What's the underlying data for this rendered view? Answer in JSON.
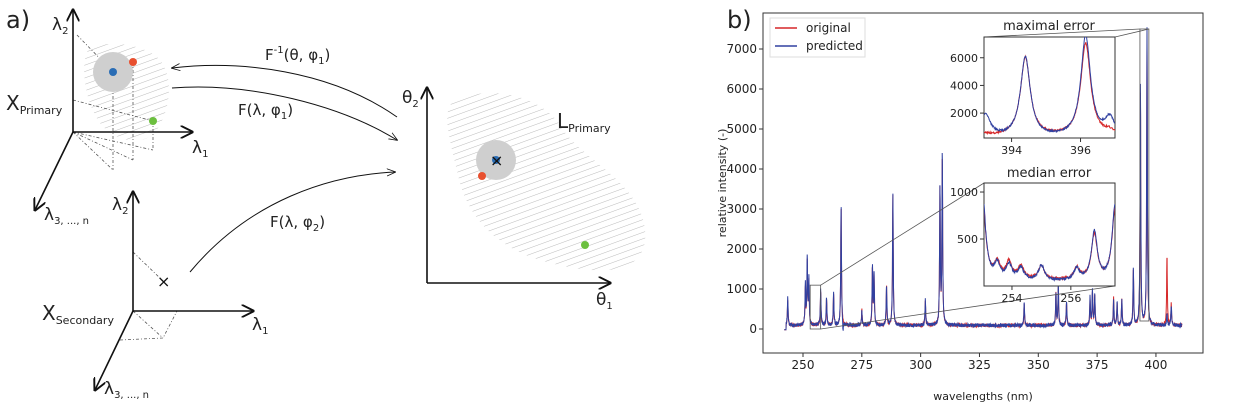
{
  "panel_a": {
    "label": "a)",
    "primary_space": {
      "name": "X",
      "name_sub": "Primary",
      "axis_y": {
        "main": "λ",
        "sub": "2"
      },
      "axis_x": {
        "main": "λ",
        "sub": "1"
      },
      "axis_z": {
        "main": "λ",
        "sub": "3, ..., n"
      }
    },
    "secondary_space": {
      "name": "X",
      "name_sub": "Secondary",
      "axis_y": {
        "main": "λ",
        "sub": "2"
      },
      "axis_x": {
        "main": "λ",
        "sub": "1"
      },
      "axis_z": {
        "main": "λ",
        "sub": "3, ..., n"
      },
      "marker": "×"
    },
    "latent_space": {
      "name": "L",
      "name_sub": "Primary",
      "axis_y": {
        "main": "θ",
        "sub": "2"
      },
      "axis_x": {
        "main": "θ",
        "sub": "1"
      },
      "marker": "×"
    },
    "arrows": {
      "inverse": {
        "f": "F",
        "sup": "-1",
        "args": "(θ, φ",
        "sub": "1",
        "close": ")"
      },
      "forward_primary": {
        "f": "F",
        "args": "(λ, φ",
        "sub": "1",
        "close": ")"
      },
      "forward_secondary": {
        "f": "F",
        "args": "(λ, φ",
        "sub": "2",
        "close": ")"
      }
    },
    "colors": {
      "blue_point": "#2a6db5",
      "red_point": "#e8502f",
      "green_point": "#6cbf3f",
      "region": "#cccccc"
    }
  },
  "panel_b": {
    "label": "b)"
  },
  "chart_data": {
    "type": "line",
    "xlabel": "wavelengths (nm)",
    "ylabel": "relative intensity (-)",
    "xlim": [
      233,
      420
    ],
    "ylim": [
      -600,
      7900
    ],
    "xticks": [
      250,
      275,
      300,
      325,
      350,
      375,
      400
    ],
    "yticks": [
      0,
      1000,
      2000,
      3000,
      4000,
      5000,
      6000,
      7000
    ],
    "grid": false,
    "legend": {
      "position": "top-left",
      "entries": [
        "original",
        "predicted"
      ]
    },
    "series": [
      {
        "name": "original",
        "color": "#d62728",
        "peaks": [
          [
            243.5,
            650
          ],
          [
            251,
            950
          ],
          [
            251.8,
            1550
          ],
          [
            252.5,
            1100
          ],
          [
            257.5,
            850
          ],
          [
            260,
            650
          ],
          [
            263,
            800
          ],
          [
            266.2,
            2950
          ],
          [
            275,
            380
          ],
          [
            279.5,
            1400
          ],
          [
            280.2,
            1250
          ],
          [
            285.5,
            950
          ],
          [
            288.2,
            3250
          ],
          [
            302,
            600
          ],
          [
            308.2,
            3350
          ],
          [
            309.2,
            4150
          ],
          [
            344,
            500
          ],
          [
            357.5,
            780
          ],
          [
            358.5,
            950
          ],
          [
            362,
            600
          ],
          [
            372,
            650
          ],
          [
            373,
            850
          ],
          [
            374,
            750
          ],
          [
            382,
            700
          ],
          [
            383.5,
            550
          ],
          [
            385.5,
            650
          ],
          [
            390.4,
            1400
          ],
          [
            393.4,
            5800
          ],
          [
            396.2,
            7000
          ],
          [
            404.7,
            1750
          ],
          [
            406.5,
            520
          ]
        ]
      },
      {
        "name": "predicted",
        "color": "#3040a0",
        "peaks": [
          [
            243.5,
            700
          ],
          [
            251,
            1000
          ],
          [
            251.8,
            1650
          ],
          [
            252.5,
            1150
          ],
          [
            257.5,
            900
          ],
          [
            260,
            700
          ],
          [
            263,
            850
          ],
          [
            266.2,
            3050
          ],
          [
            267,
            -300
          ],
          [
            275,
            350
          ],
          [
            279.5,
            1450
          ],
          [
            280.2,
            1300
          ],
          [
            285.5,
            1000
          ],
          [
            288.2,
            3300
          ],
          [
            302,
            650
          ],
          [
            308.2,
            3400
          ],
          [
            309.2,
            4250
          ],
          [
            344,
            550
          ],
          [
            357.5,
            800
          ],
          [
            358.5,
            1000
          ],
          [
            362,
            600
          ],
          [
            372,
            700
          ],
          [
            373,
            900
          ],
          [
            374,
            800
          ],
          [
            382,
            650
          ],
          [
            383.5,
            550
          ],
          [
            385.5,
            650
          ],
          [
            390.4,
            1450
          ],
          [
            393.4,
            6000
          ],
          [
            396.2,
            7500
          ],
          [
            404.7,
            300
          ],
          [
            406.5,
            500
          ]
        ]
      }
    ],
    "insets": [
      {
        "title": "maximal error",
        "xlim": [
          393.2,
          397.0
        ],
        "ylim": [
          200,
          7500
        ],
        "xticks": [
          394,
          396
        ],
        "yticks": [
          2000,
          4000,
          6000
        ],
        "series": [
          {
            "name": "original",
            "baseline": 300,
            "peaks": [
              [
                394.4,
                5700
              ],
              [
                396.15,
                6700
              ],
              [
                393.25,
                150
              ],
              [
                396.85,
                300
              ]
            ]
          },
          {
            "name": "predicted",
            "baseline": 200,
            "peaks": [
              [
                394.4,
                5800
              ],
              [
                396.15,
                7300
              ],
              [
                393.25,
                1600
              ],
              [
                396.85,
                1300
              ]
            ]
          }
        ]
      },
      {
        "title": "median error",
        "xlim": [
          253.05,
          257.5
        ],
        "ylim": [
          0,
          1096
        ],
        "xticks": [
          254,
          256
        ],
        "yticks": [
          500,
          1000
        ],
        "series": [
          {
            "name": "original",
            "baseline": 60,
            "peaks": [
              [
                253.0,
                900
              ],
              [
                253.5,
                170
              ],
              [
                253.9,
                180
              ],
              [
                254.3,
                140
              ],
              [
                255.0,
                150
              ],
              [
                256.2,
                120
              ],
              [
                256.8,
                480
              ],
              [
                257.5,
                750
              ]
            ]
          },
          {
            "name": "predicted",
            "baseline": 50,
            "peaks": [
              [
                253.0,
                950
              ],
              [
                253.5,
                160
              ],
              [
                253.9,
                160
              ],
              [
                254.3,
                130
              ],
              [
                255.0,
                160
              ],
              [
                256.2,
                120
              ],
              [
                256.8,
                520
              ],
              [
                257.5,
                800
              ]
            ]
          }
        ]
      }
    ]
  }
}
